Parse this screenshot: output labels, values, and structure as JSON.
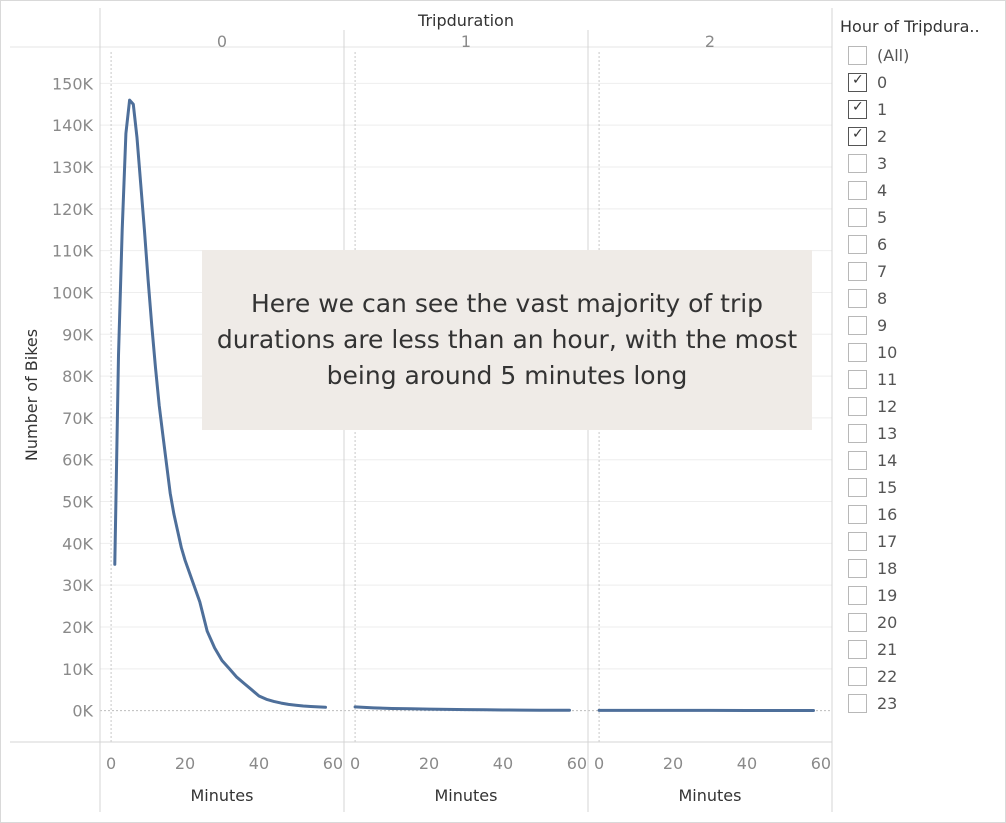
{
  "chart_data": {
    "type": "line",
    "column_header": "Tripduration",
    "panels": [
      {
        "label": "0",
        "x": [
          1,
          2,
          3,
          4,
          5,
          6,
          7,
          8,
          9,
          10,
          11,
          12,
          13,
          14,
          15,
          16,
          17,
          18,
          19,
          20,
          22,
          24,
          26,
          28,
          30,
          32,
          34,
          36,
          38,
          40,
          42,
          44,
          46,
          48,
          50,
          52,
          54,
          56,
          58
        ],
        "y": [
          35000,
          85000,
          115000,
          138000,
          146000,
          145000,
          137000,
          126000,
          115000,
          103000,
          92000,
          82000,
          73000,
          66000,
          59000,
          52000,
          47000,
          43000,
          39000,
          36000,
          31000,
          26000,
          19000,
          15000,
          12000,
          10000,
          8000,
          6500,
          5000,
          3500,
          2700,
          2200,
          1800,
          1500,
          1300,
          1100,
          1000,
          900,
          800
        ]
      },
      {
        "label": "1",
        "x": [
          0,
          5,
          10,
          15,
          20,
          25,
          30,
          35,
          40,
          45,
          50,
          55,
          58
        ],
        "y": [
          900,
          650,
          520,
          430,
          360,
          300,
          250,
          200,
          160,
          130,
          100,
          80,
          70
        ]
      },
      {
        "label": "2",
        "x": [
          0,
          10,
          20,
          30,
          40,
          50,
          58
        ],
        "y": [
          60,
          55,
          50,
          45,
          40,
          35,
          30
        ]
      }
    ],
    "xlabel": "Minutes",
    "ylabel": "Number of Bikes",
    "xlim": [
      -3,
      63
    ],
    "xticks": [
      0,
      20,
      40,
      60
    ],
    "ylim": [
      -7500,
      157500
    ],
    "yticks": [
      0,
      10000,
      20000,
      30000,
      40000,
      50000,
      60000,
      70000,
      80000,
      90000,
      100000,
      110000,
      120000,
      130000,
      140000,
      150000
    ],
    "ytick_labels": [
      "0K",
      "10K",
      "20K",
      "30K",
      "40K",
      "50K",
      "60K",
      "70K",
      "80K",
      "90K",
      "100K",
      "110K",
      "120K",
      "130K",
      "140K",
      "150K"
    ],
    "line_color": "#4e6f9a",
    "grid": true
  },
  "annotation": {
    "text": "Here we can see the vast majority of trip durations are less than an hour, with the most being around 5 minutes long"
  },
  "filter": {
    "title": "Hour of Tripdura..",
    "items": [
      {
        "label": "(All)",
        "checked": false
      },
      {
        "label": "0",
        "checked": true
      },
      {
        "label": "1",
        "checked": true
      },
      {
        "label": "2",
        "checked": true
      },
      {
        "label": "3",
        "checked": false
      },
      {
        "label": "4",
        "checked": false
      },
      {
        "label": "5",
        "checked": false
      },
      {
        "label": "6",
        "checked": false
      },
      {
        "label": "7",
        "checked": false
      },
      {
        "label": "8",
        "checked": false
      },
      {
        "label": "9",
        "checked": false
      },
      {
        "label": "10",
        "checked": false
      },
      {
        "label": "11",
        "checked": false
      },
      {
        "label": "12",
        "checked": false
      },
      {
        "label": "13",
        "checked": false
      },
      {
        "label": "14",
        "checked": false
      },
      {
        "label": "15",
        "checked": false
      },
      {
        "label": "16",
        "checked": false
      },
      {
        "label": "17",
        "checked": false
      },
      {
        "label": "18",
        "checked": false
      },
      {
        "label": "19",
        "checked": false
      },
      {
        "label": "20",
        "checked": false
      },
      {
        "label": "21",
        "checked": false
      },
      {
        "label": "22",
        "checked": false
      },
      {
        "label": "23",
        "checked": false
      }
    ]
  }
}
